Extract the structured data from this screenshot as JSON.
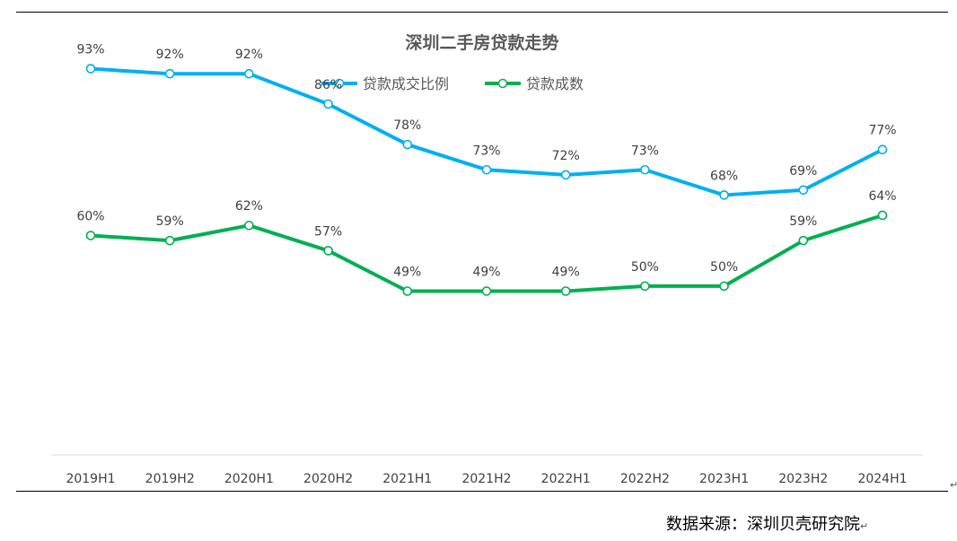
{
  "chart_data": {
    "type": "line",
    "title": "深圳二手房贷款走势",
    "categories": [
      "2019H1",
      "2019H2",
      "2020H1",
      "2020H2",
      "2021H1",
      "2021H2",
      "2022H1",
      "2022H2",
      "2023H1",
      "2023H2",
      "2024H1"
    ],
    "series": [
      {
        "name": "贷款成交比例",
        "color": "#00b0f0",
        "values": [
          93,
          92,
          92,
          86,
          78,
          73,
          72,
          73,
          68,
          69,
          77
        ],
        "labels": [
          "93%",
          "92%",
          "92%",
          "86%",
          "78%",
          "73%",
          "72%",
          "73%",
          "68%",
          "69%",
          "77%"
        ]
      },
      {
        "name": "贷款成数",
        "color": "#00b050",
        "values": [
          60,
          59,
          62,
          57,
          49,
          49,
          49,
          50,
          50,
          59,
          64
        ],
        "labels": [
          "60%",
          "59%",
          "62%",
          "57%",
          "49%",
          "49%",
          "49%",
          "50%",
          "50%",
          "59%",
          "64%"
        ]
      }
    ],
    "grid": false,
    "legend_position": "top"
  },
  "footer": {
    "source": "数据来源：深圳贝壳研究院",
    "para_mark": "↵"
  }
}
